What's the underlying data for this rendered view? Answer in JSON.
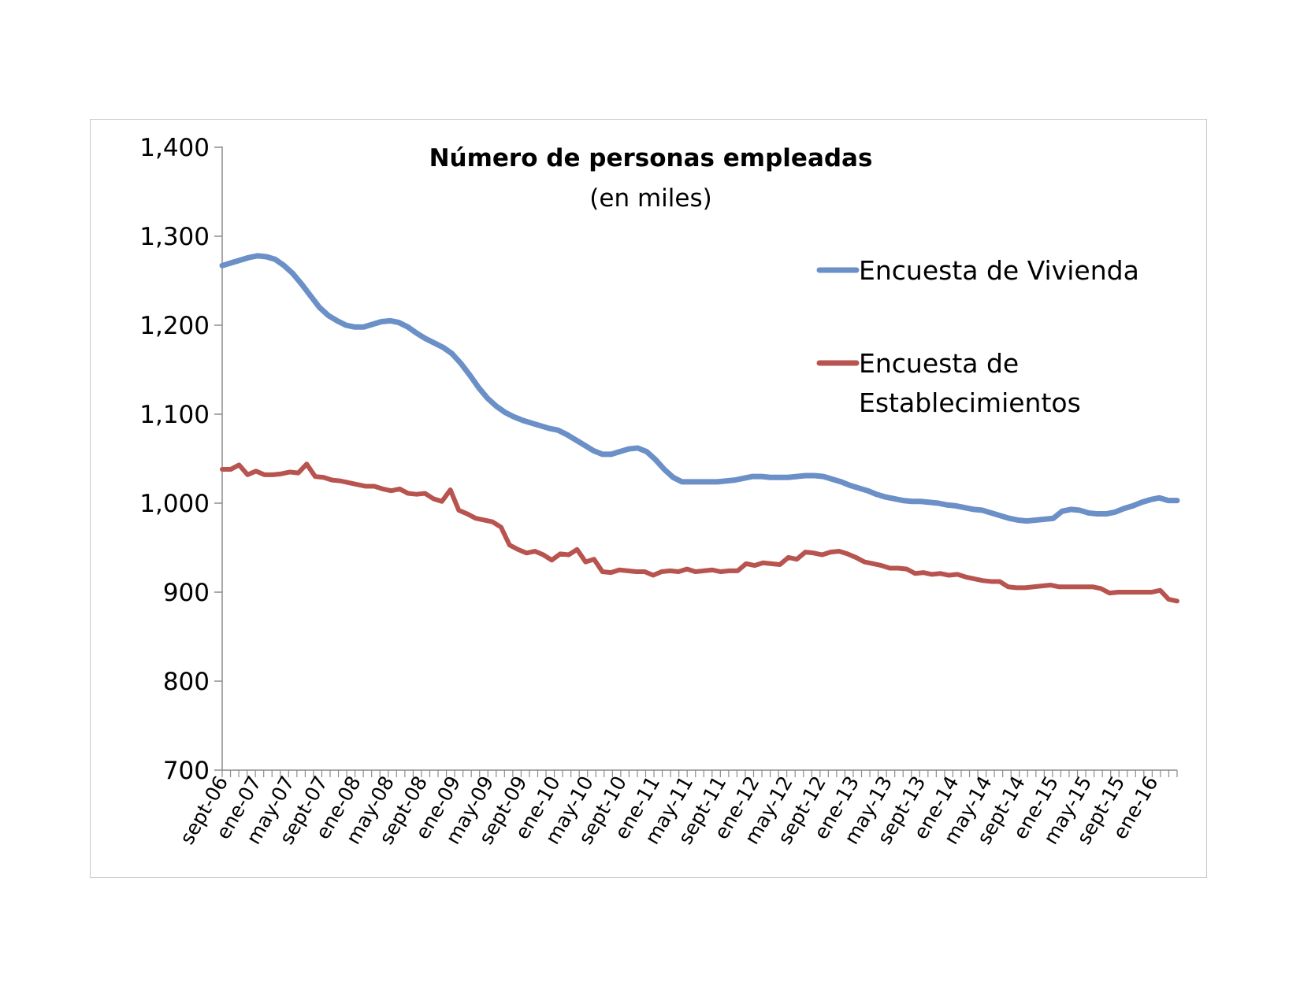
{
  "chart_data": {
    "type": "line",
    "title": "Número de personas empleadas",
    "subtitle": "(en miles)",
    "xlabel": "",
    "ylabel": "",
    "ylim": [
      700,
      1400
    ],
    "y_ticks": [
      "1,400",
      "1,300",
      "1,200",
      "1,100",
      "1,000",
      "900",
      "800",
      "700"
    ],
    "y_tick_values": [
      1400,
      1300,
      1200,
      1100,
      1000,
      900,
      800,
      700
    ],
    "x_tick_labels": [
      "sept-06",
      "ene-07",
      "may-07",
      "sept-07",
      "ene-08",
      "may-08",
      "sept-08",
      "ene-09",
      "may-09",
      "sept-09",
      "ene-10",
      "may-10",
      "sept-10",
      "ene-11",
      "may-11",
      "sept-11",
      "ene-12",
      "may-12",
      "sept-12",
      "ene-13",
      "may-13",
      "sept-13",
      "ene-14",
      "may-14",
      "sept-14",
      "ene-15",
      "may-15",
      "sept-15",
      "ene-16"
    ],
    "x_start": "2006-09",
    "x_end": "2016-04",
    "legend_position": "right",
    "grid": false,
    "series": [
      {
        "name": "Encuesta de Vivienda",
        "color": "#6b8fc7",
        "values": [
          1267,
          1270,
          1273,
          1276,
          1278,
          1277,
          1274,
          1267,
          1258,
          1246,
          1233,
          1220,
          1211,
          1205,
          1200,
          1198,
          1198,
          1201,
          1204,
          1205,
          1203,
          1198,
          1191,
          1185,
          1180,
          1175,
          1168,
          1157,
          1144,
          1130,
          1118,
          1109,
          1102,
          1097,
          1093,
          1090,
          1087,
          1084,
          1082,
          1077,
          1071,
          1065,
          1059,
          1055,
          1055,
          1058,
          1061,
          1062,
          1058,
          1049,
          1038,
          1029,
          1024,
          1024,
          1024,
          1024,
          1024,
          1025,
          1026,
          1028,
          1030,
          1030,
          1029,
          1029,
          1029,
          1030,
          1031,
          1031,
          1030,
          1027,
          1024,
          1020,
          1017,
          1014,
          1010,
          1007,
          1005,
          1003,
          1002,
          1002,
          1001,
          1000,
          998,
          997,
          995,
          993,
          992,
          989,
          986,
          983,
          981,
          980,
          981,
          982,
          983,
          991,
          993,
          992,
          989,
          988,
          988,
          990,
          994,
          997,
          1001,
          1004,
          1006,
          1003,
          1003
        ]
      },
      {
        "name": "Encuesta de Establecimientos",
        "color": "#b85450",
        "values": [
          1038,
          1038,
          1043,
          1032,
          1036,
          1032,
          1032,
          1033,
          1035,
          1034,
          1044,
          1030,
          1029,
          1026,
          1025,
          1023,
          1021,
          1019,
          1019,
          1016,
          1014,
          1016,
          1011,
          1010,
          1011,
          1005,
          1002,
          1015,
          992,
          988,
          983,
          981,
          979,
          973,
          953,
          948,
          944,
          946,
          942,
          936,
          943,
          942,
          948,
          934,
          937,
          923,
          922,
          925,
          924,
          923,
          923,
          919,
          923,
          924,
          923,
          926,
          923,
          924,
          925,
          923,
          924,
          924,
          932,
          930,
          933,
          932,
          931,
          939,
          937,
          945,
          944,
          942,
          945,
          946,
          943,
          939,
          934,
          932,
          930,
          927,
          927,
          926,
          921,
          922,
          920,
          921,
          919,
          920,
          917,
          915,
          913,
          912,
          912,
          906,
          905,
          905,
          906,
          907,
          908,
          906,
          906,
          906,
          906,
          906,
          904,
          899,
          900,
          900,
          900,
          900,
          900,
          902,
          892,
          890
        ]
      }
    ]
  }
}
